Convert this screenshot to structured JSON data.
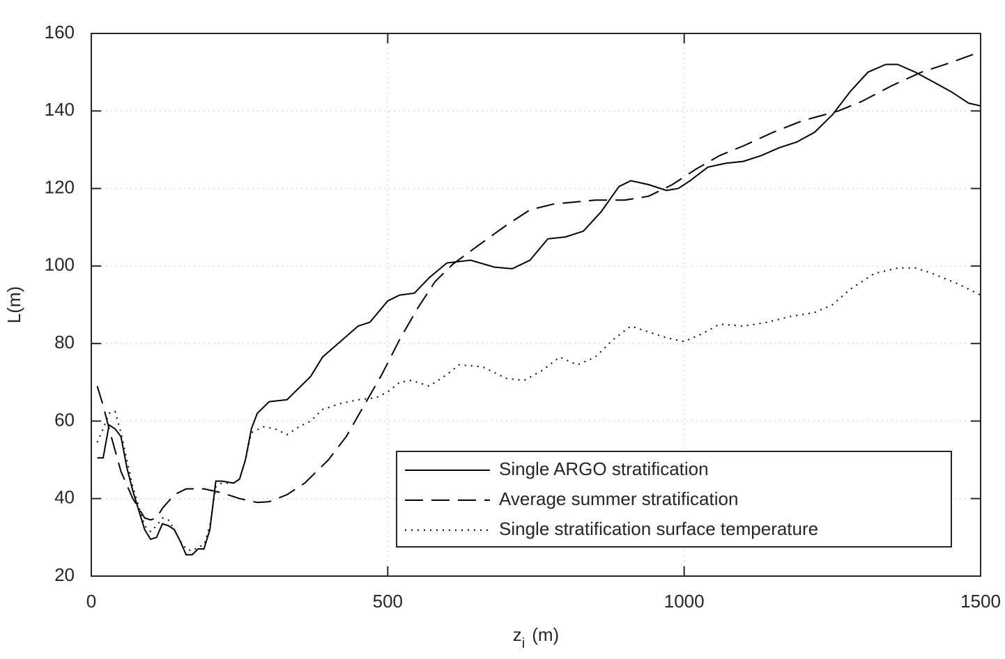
{
  "chart_data": {
    "type": "line",
    "xlabel": [
      "z",
      "i",
      "(m)"
    ],
    "ylabel": "L(m)",
    "xlim": [
      0,
      1500
    ],
    "xticks": [
      0,
      500,
      1000,
      1500
    ],
    "ylim": [
      20,
      160
    ],
    "yticks": [
      20,
      40,
      60,
      80,
      100,
      120,
      140,
      160
    ],
    "grid": true,
    "legend": "lower right",
    "series": [
      {
        "name": "Single ARGO stratification",
        "color": "#000000",
        "style": "solid",
        "x": [
          10,
          20,
          30,
          40,
          50,
          60,
          70,
          80,
          90,
          100,
          110,
          120,
          130,
          140,
          150,
          160,
          170,
          180,
          190,
          200,
          210,
          220,
          240,
          250,
          260,
          270,
          280,
          300,
          330,
          350,
          370,
          390,
          420,
          450,
          470,
          500,
          520,
          545,
          570,
          600,
          640,
          680,
          710,
          740,
          770,
          800,
          830,
          860,
          890,
          910,
          940,
          970,
          990,
          1010,
          1040,
          1070,
          1100,
          1130,
          1160,
          1190,
          1220,
          1250,
          1280,
          1310,
          1340,
          1360,
          1390,
          1420,
          1450,
          1480,
          1500
        ],
        "values": [
          50.5,
          50.5,
          59,
          58,
          56,
          48,
          42,
          37,
          32,
          29.5,
          30,
          33.5,
          33,
          32,
          29,
          25.5,
          25.5,
          27,
          27,
          32,
          44.5,
          44.5,
          44,
          45,
          50,
          58,
          62,
          65,
          65.5,
          68.5,
          71.5,
          76.5,
          80.5,
          84.5,
          85.5,
          91,
          92.5,
          93,
          97,
          100.8,
          101.5,
          99.7,
          99.3,
          101.5,
          107,
          107.5,
          109,
          114,
          120.5,
          122,
          121,
          119.5,
          120,
          122,
          125.5,
          126.5,
          127,
          128.5,
          130.5,
          132,
          134.5,
          139,
          145,
          150,
          152,
          152,
          150,
          147.5,
          145,
          142,
          141.3
        ]
      },
      {
        "name": "Average summer stratification",
        "color": "#000000",
        "style": "dashed",
        "x": [
          10,
          20,
          30,
          50,
          70,
          90,
          100,
          110,
          120,
          140,
          160,
          190,
          220,
          250,
          280,
          300,
          330,
          360,
          400,
          430,
          460,
          490,
          520,
          550,
          580,
          610,
          650,
          700,
          740,
          780,
          850,
          900,
          940,
          980,
          1020,
          1060,
          1100,
          1150,
          1200,
          1260,
          1300,
          1350,
          1400,
          1450,
          1500
        ],
        "values": [
          69,
          64,
          58,
          47,
          40,
          35,
          34.5,
          35,
          37.5,
          41,
          42.5,
          42.5,
          41.5,
          40,
          39,
          39.2,
          41,
          44,
          50,
          56,
          64,
          72,
          81,
          89,
          96,
          100.5,
          105,
          110.5,
          114.5,
          116,
          117,
          117,
          118,
          121,
          125,
          128.5,
          131,
          134.5,
          137.5,
          140,
          142.5,
          146.5,
          150,
          152.5,
          155.3
        ]
      },
      {
        "name": "Single stratification surface temperature",
        "color": "#000000",
        "style": "dotted",
        "x": [
          10,
          20,
          30,
          40,
          50,
          60,
          70,
          80,
          90,
          100,
          110,
          120,
          130,
          140,
          150,
          160,
          170,
          180,
          190,
          200,
          210,
          220,
          240,
          250,
          260,
          270,
          290,
          310,
          330,
          350,
          370,
          390,
          420,
          450,
          480,
          500,
          520,
          540,
          570,
          600,
          620,
          660,
          700,
          730,
          760,
          790,
          820,
          850,
          880,
          910,
          940,
          970,
          1000,
          1030,
          1060,
          1100,
          1140,
          1180,
          1220,
          1250,
          1280,
          1320,
          1360,
          1390,
          1420,
          1460,
          1500
        ],
        "values": [
          54.5,
          58,
          62,
          62.5,
          57,
          50,
          43,
          38,
          33,
          31.5,
          33,
          35,
          34.5,
          32,
          29,
          27,
          26.5,
          27.5,
          28,
          33,
          43,
          44,
          44,
          45,
          50,
          57,
          58.5,
          58,
          56.5,
          58.5,
          60,
          63,
          64.5,
          65.5,
          66,
          67.5,
          70,
          70.5,
          69,
          72,
          74.5,
          74,
          71,
          70.5,
          73,
          76.5,
          74.5,
          76.5,
          81,
          84.5,
          83,
          81.5,
          80.5,
          82.5,
          85,
          84.5,
          85.5,
          87,
          88,
          90,
          94,
          98,
          99.5,
          99.5,
          98,
          95.5,
          92.5
        ]
      }
    ]
  }
}
